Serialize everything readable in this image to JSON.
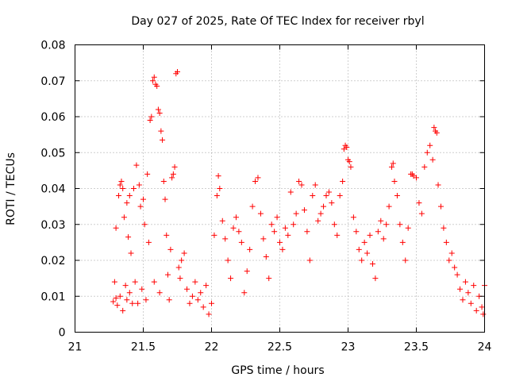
{
  "chart_data": {
    "type": "scatter",
    "title": "Day 027 of 2025, Rate Of TEC Index for receiver rbyl",
    "xlabel": "GPS time / hours",
    "ylabel": "ROTI / TECUs",
    "xlim": [
      21,
      24
    ],
    "ylim": [
      0,
      0.08
    ],
    "x_ticks": [
      21,
      21.5,
      22,
      22.5,
      23,
      23.5,
      24
    ],
    "x_tick_labels": [
      "21",
      "21.5",
      "22",
      "22.5",
      "23",
      "23.5",
      "24"
    ],
    "y_ticks": [
      0,
      0.01,
      0.02,
      0.03,
      0.04,
      0.05,
      0.06,
      0.07,
      0.08
    ],
    "y_tick_labels": [
      "0",
      "0.01",
      "0.02",
      "0.03",
      "0.04",
      "0.05",
      "0.06",
      "0.07",
      "0.08"
    ],
    "grid": true,
    "marker": "+",
    "series": [
      {
        "name": "ROTI",
        "color": "#ff0000",
        "points": [
          [
            21.28,
            0.0085
          ],
          [
            21.29,
            0.014
          ],
          [
            21.3,
            0.029
          ],
          [
            21.3,
            0.0095
          ],
          [
            21.31,
            0.0075
          ],
          [
            21.32,
            0.038
          ],
          [
            21.33,
            0.041
          ],
          [
            21.33,
            0.01
          ],
          [
            21.34,
            0.042
          ],
          [
            21.35,
            0.04
          ],
          [
            21.35,
            0.006
          ],
          [
            21.36,
            0.032
          ],
          [
            21.37,
            0.013
          ],
          [
            21.38,
            0.036
          ],
          [
            21.38,
            0.009
          ],
          [
            21.39,
            0.0265
          ],
          [
            21.4,
            0.038
          ],
          [
            21.4,
            0.011
          ],
          [
            21.41,
            0.022
          ],
          [
            21.42,
            0.008
          ],
          [
            21.43,
            0.04
          ],
          [
            21.44,
            0.014
          ],
          [
            21.45,
            0.0465
          ],
          [
            21.46,
            0.008
          ],
          [
            21.47,
            0.041
          ],
          [
            21.48,
            0.035
          ],
          [
            21.49,
            0.012
          ],
          [
            21.5,
            0.037
          ],
          [
            21.51,
            0.03
          ],
          [
            21.52,
            0.009
          ],
          [
            21.53,
            0.044
          ],
          [
            21.54,
            0.025
          ],
          [
            21.55,
            0.059
          ],
          [
            21.56,
            0.06
          ],
          [
            21.57,
            0.07
          ],
          [
            21.58,
            0.071
          ],
          [
            21.58,
            0.014
          ],
          [
            21.59,
            0.069
          ],
          [
            21.6,
            0.0685
          ],
          [
            21.61,
            0.062
          ],
          [
            21.62,
            0.061
          ],
          [
            21.62,
            0.011
          ],
          [
            21.63,
            0.056
          ],
          [
            21.64,
            0.0535
          ],
          [
            21.65,
            0.042
          ],
          [
            21.66,
            0.037
          ],
          [
            21.67,
            0.027
          ],
          [
            21.68,
            0.016
          ],
          [
            21.69,
            0.009
          ],
          [
            21.7,
            0.023
          ],
          [
            21.71,
            0.043
          ],
          [
            21.72,
            0.044
          ],
          [
            21.73,
            0.046
          ],
          [
            21.74,
            0.072
          ],
          [
            21.75,
            0.0725
          ],
          [
            21.76,
            0.018
          ],
          [
            21.77,
            0.015
          ],
          [
            21.78,
            0.02
          ],
          [
            21.8,
            0.022
          ],
          [
            21.82,
            0.012
          ],
          [
            21.84,
            0.008
          ],
          [
            21.86,
            0.01
          ],
          [
            21.88,
            0.014
          ],
          [
            21.9,
            0.009
          ],
          [
            21.92,
            0.011
          ],
          [
            21.94,
            0.007
          ],
          [
            21.96,
            0.013
          ],
          [
            21.98,
            0.005
          ],
          [
            22.0,
            0.008
          ],
          [
            22.02,
            0.027
          ],
          [
            22.04,
            0.038
          ],
          [
            22.05,
            0.0435
          ],
          [
            22.06,
            0.04
          ],
          [
            22.08,
            0.031
          ],
          [
            22.1,
            0.026
          ],
          [
            22.12,
            0.02
          ],
          [
            22.14,
            0.015
          ],
          [
            22.16,
            0.029
          ],
          [
            22.18,
            0.032
          ],
          [
            22.2,
            0.028
          ],
          [
            22.22,
            0.025
          ],
          [
            22.24,
            0.011
          ],
          [
            22.26,
            0.017
          ],
          [
            22.28,
            0.023
          ],
          [
            22.3,
            0.035
          ],
          [
            22.32,
            0.042
          ],
          [
            22.34,
            0.043
          ],
          [
            22.36,
            0.033
          ],
          [
            22.38,
            0.026
          ],
          [
            22.4,
            0.021
          ],
          [
            22.42,
            0.015
          ],
          [
            22.44,
            0.03
          ],
          [
            22.46,
            0.028
          ],
          [
            22.48,
            0.032
          ],
          [
            22.5,
            0.025
          ],
          [
            22.52,
            0.023
          ],
          [
            22.54,
            0.029
          ],
          [
            22.56,
            0.027
          ],
          [
            22.58,
            0.039
          ],
          [
            22.6,
            0.03
          ],
          [
            22.62,
            0.033
          ],
          [
            22.64,
            0.042
          ],
          [
            22.66,
            0.041
          ],
          [
            22.68,
            0.034
          ],
          [
            22.7,
            0.028
          ],
          [
            22.72,
            0.02
          ],
          [
            22.74,
            0.038
          ],
          [
            22.76,
            0.041
          ],
          [
            22.78,
            0.031
          ],
          [
            22.8,
            0.033
          ],
          [
            22.82,
            0.035
          ],
          [
            22.84,
            0.038
          ],
          [
            22.86,
            0.039
          ],
          [
            22.88,
            0.036
          ],
          [
            22.9,
            0.03
          ],
          [
            22.92,
            0.027
          ],
          [
            22.94,
            0.038
          ],
          [
            22.96,
            0.042
          ],
          [
            22.97,
            0.051
          ],
          [
            22.98,
            0.052
          ],
          [
            22.99,
            0.0515
          ],
          [
            23.0,
            0.048
          ],
          [
            23.01,
            0.0475
          ],
          [
            23.02,
            0.046
          ],
          [
            23.04,
            0.032
          ],
          [
            23.06,
            0.028
          ],
          [
            23.08,
            0.023
          ],
          [
            23.1,
            0.02
          ],
          [
            23.12,
            0.025
          ],
          [
            23.14,
            0.022
          ],
          [
            23.16,
            0.027
          ],
          [
            23.18,
            0.019
          ],
          [
            23.2,
            0.015
          ],
          [
            23.22,
            0.028
          ],
          [
            23.24,
            0.031
          ],
          [
            23.26,
            0.026
          ],
          [
            23.28,
            0.03
          ],
          [
            23.3,
            0.035
          ],
          [
            23.32,
            0.046
          ],
          [
            23.33,
            0.047
          ],
          [
            23.34,
            0.042
          ],
          [
            23.36,
            0.038
          ],
          [
            23.38,
            0.03
          ],
          [
            23.4,
            0.025
          ],
          [
            23.42,
            0.02
          ],
          [
            23.44,
            0.029
          ],
          [
            23.46,
            0.044
          ],
          [
            23.47,
            0.044
          ],
          [
            23.48,
            0.0435
          ],
          [
            23.5,
            0.043
          ],
          [
            23.52,
            0.036
          ],
          [
            23.54,
            0.033
          ],
          [
            23.56,
            0.046
          ],
          [
            23.58,
            0.05
          ],
          [
            23.6,
            0.052
          ],
          [
            23.62,
            0.048
          ],
          [
            23.63,
            0.057
          ],
          [
            23.64,
            0.056
          ],
          [
            23.65,
            0.0555
          ],
          [
            23.66,
            0.041
          ],
          [
            23.68,
            0.035
          ],
          [
            23.7,
            0.029
          ],
          [
            23.72,
            0.025
          ],
          [
            23.74,
            0.02
          ],
          [
            23.76,
            0.022
          ],
          [
            23.78,
            0.018
          ],
          [
            23.8,
            0.016
          ],
          [
            23.82,
            0.012
          ],
          [
            23.84,
            0.009
          ],
          [
            23.86,
            0.014
          ],
          [
            23.88,
            0.011
          ],
          [
            23.9,
            0.008
          ],
          [
            23.92,
            0.013
          ],
          [
            23.94,
            0.006
          ],
          [
            23.96,
            0.01
          ],
          [
            23.98,
            0.007
          ],
          [
            23.99,
            0.005
          ],
          [
            24.0,
            0.013
          ]
        ]
      }
    ]
  }
}
